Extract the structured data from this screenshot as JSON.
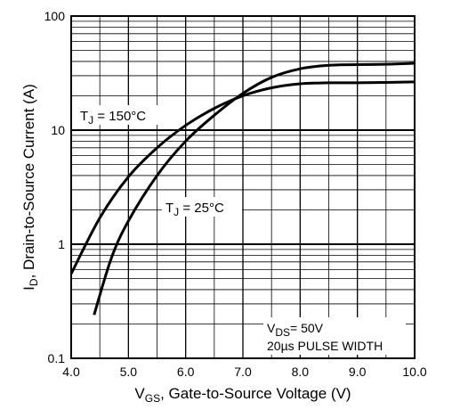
{
  "chart_data": {
    "type": "line",
    "x_scale": "linear",
    "y_scale": "log",
    "xlim": [
      4.0,
      10.0
    ],
    "ylim": [
      0.1,
      100
    ],
    "grid": true,
    "x_ticks": [
      "4.0",
      "5.0",
      "6.0",
      "7.0",
      "8.0",
      "9.0",
      "10.0"
    ],
    "y_ticks": [
      {
        "value": 0.1,
        "label": "0.1"
      },
      {
        "value": 1,
        "label": "1"
      },
      {
        "value": 10,
        "label": "10"
      },
      {
        "value": 100,
        "label": "100"
      }
    ],
    "xlabel": {
      "main": "V",
      "sub": "GS",
      "rest": ", Gate-to-Source Voltage (V)"
    },
    "ylabel": {
      "main": "I",
      "sub": "D",
      "rest": ",  Drain-to-Source Current (A)"
    },
    "series": [
      {
        "name": {
          "main": "T",
          "sub": "J",
          "rest": " = 150°C"
        },
        "x": [
          4.0,
          4.5,
          5.0,
          5.5,
          6.0,
          6.5,
          7.0,
          7.5,
          8.0,
          8.5,
          9.0,
          9.5,
          10.0
        ],
        "y": [
          0.55,
          1.7,
          3.9,
          7.0,
          11,
          15.5,
          20,
          23.5,
          25.5,
          26,
          26,
          26.2,
          26.5
        ]
      },
      {
        "name": {
          "main": "T",
          "sub": "J",
          "rest": " = 25°C"
        },
        "x": [
          4.4,
          4.7,
          5.0,
          5.5,
          6.0,
          6.5,
          7.0,
          7.5,
          8.0,
          8.5,
          9.0,
          9.5,
          10.0
        ],
        "y": [
          0.24,
          0.75,
          1.6,
          4.0,
          8.0,
          13.5,
          21,
          29,
          34.5,
          37,
          37.5,
          37.8,
          38.5
        ]
      }
    ],
    "annotations": {
      "condition1": {
        "main": "V",
        "sub": "DS",
        "rest": "= 50V"
      },
      "condition2": "20µs PULSE WIDTH"
    }
  }
}
